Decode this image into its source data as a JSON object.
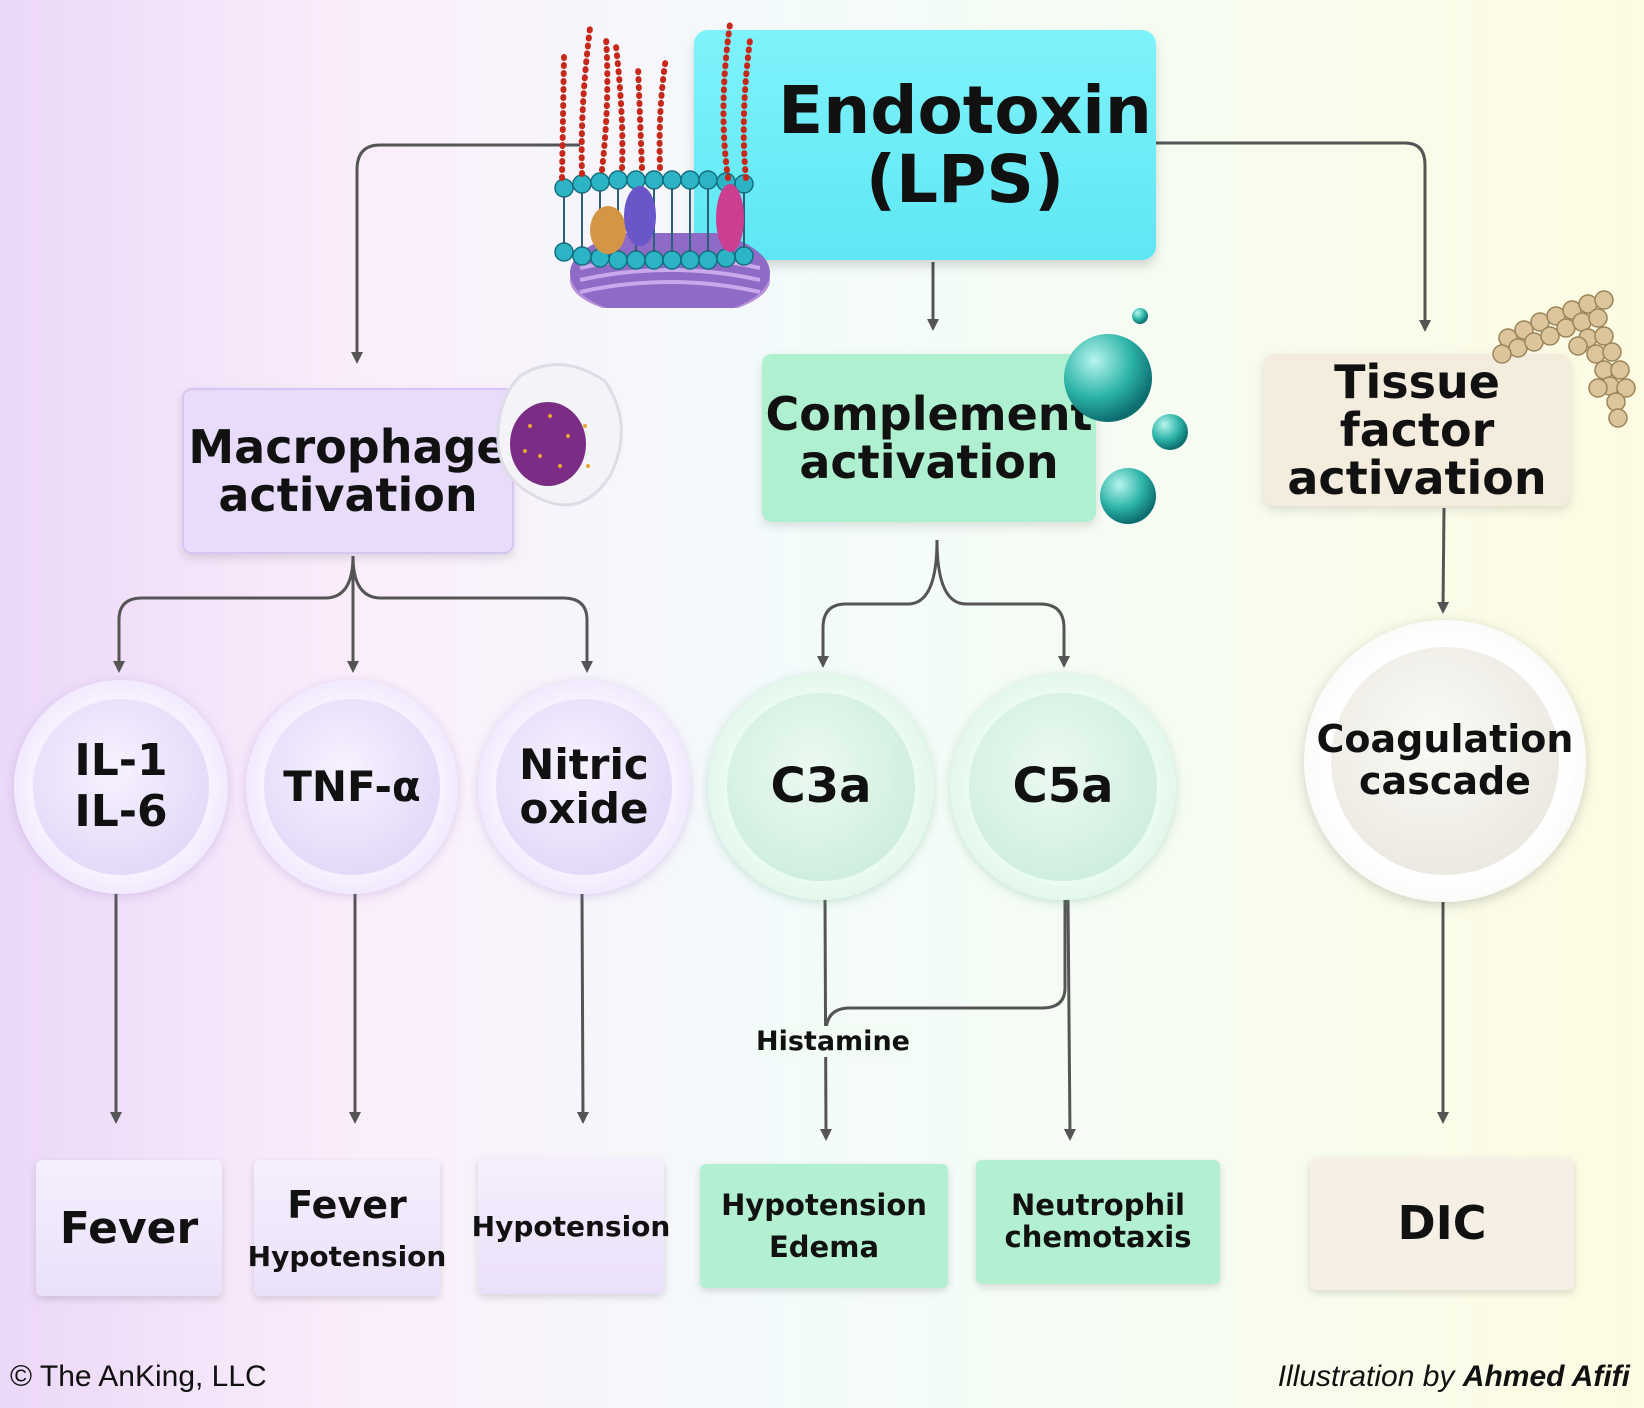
{
  "root": {
    "line1": "Endotoxin",
    "line2": "(LPS)"
  },
  "branches": {
    "macrophage": {
      "line1": "Macrophage",
      "line2": "activation"
    },
    "complement": {
      "line1": "Complement",
      "line2": "activation"
    },
    "tissue": {
      "line1": "Tissue factor",
      "line2": "activation"
    }
  },
  "mediators": {
    "il": {
      "line1": "IL-1",
      "line2": "IL-6"
    },
    "tnf": {
      "line1": "TNF-α"
    },
    "no": {
      "line1": "Nitric",
      "line2": "oxide"
    },
    "c3a": {
      "line1": "C3a"
    },
    "c5a": {
      "line1": "C5a"
    },
    "coag": {
      "line1": "Coagulation",
      "line2": "cascade"
    }
  },
  "histamine_label": "Histamine",
  "outcomes": {
    "fever": {
      "line1": "Fever"
    },
    "fever_hypo": {
      "line1": "Fever",
      "line2": "Hypotension"
    },
    "hypo": {
      "line1": "Hypotension"
    },
    "hypo_edema": {
      "line1": "Hypotension",
      "line2": "Edema"
    },
    "neutro": {
      "line1": "Neutrophil",
      "line2": "chemotaxis"
    },
    "dic": {
      "line1": "DIC"
    }
  },
  "footer": {
    "copyright": "© The AnKing, LLC",
    "credit_prefix": "Illustration by",
    "credit_name": "Ahmed Afifi"
  },
  "colors": {
    "line": "#555555",
    "purple": "#e9dcfb",
    "green": "#aef0cf",
    "beige": "#f4ecdd",
    "cyan": "#6ef0f9"
  }
}
